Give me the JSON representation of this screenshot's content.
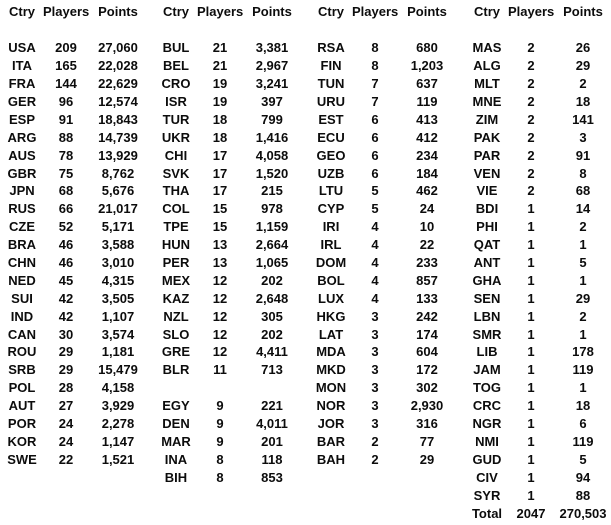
{
  "table": {
    "headers": [
      "Ctry",
      "Players",
      "Points"
    ],
    "total_label": "Total",
    "groups": [
      {
        "rows": [
          [
            "USA",
            "209",
            "27,060"
          ],
          [
            "ITA",
            "165",
            "22,028"
          ],
          [
            "FRA",
            "144",
            "22,629"
          ],
          [
            "GER",
            "96",
            "12,574"
          ],
          [
            "ESP",
            "91",
            "18,843"
          ],
          [
            "ARG",
            "88",
            "14,739"
          ],
          [
            "AUS",
            "78",
            "13,929"
          ],
          [
            "GBR",
            "75",
            "8,762"
          ],
          [
            "JPN",
            "68",
            "5,676"
          ],
          [
            "RUS",
            "66",
            "21,017"
          ],
          [
            "CZE",
            "52",
            "5,171"
          ],
          [
            "BRA",
            "46",
            "3,588"
          ],
          [
            "CHN",
            "46",
            "3,010"
          ],
          [
            "NED",
            "45",
            "4,315"
          ],
          [
            "SUI",
            "42",
            "3,505"
          ],
          [
            "IND",
            "42",
            "1,107"
          ],
          [
            "CAN",
            "30",
            "3,574"
          ],
          [
            "ROU",
            "29",
            "1,181"
          ],
          [
            "SRB",
            "29",
            "15,479"
          ],
          [
            "POL",
            "28",
            "4,158"
          ],
          [
            "AUT",
            "27",
            "3,929"
          ],
          [
            "POR",
            "24",
            "2,278"
          ],
          [
            "KOR",
            "24",
            "1,147"
          ],
          [
            "SWE",
            "22",
            "1,521"
          ],
          null,
          null,
          null
        ]
      },
      {
        "rows": [
          [
            "BUL",
            "21",
            "3,381"
          ],
          [
            "BEL",
            "21",
            "2,967"
          ],
          [
            "CRO",
            "19",
            "3,241"
          ],
          [
            "ISR",
            "19",
            "397"
          ],
          [
            "TUR",
            "18",
            "799"
          ],
          [
            "UKR",
            "18",
            "1,416"
          ],
          [
            "CHI",
            "17",
            "4,058"
          ],
          [
            "SVK",
            "17",
            "1,520"
          ],
          [
            "THA",
            "17",
            "215"
          ],
          [
            "COL",
            "15",
            "978"
          ],
          [
            "TPE",
            "15",
            "1,159"
          ],
          [
            "HUN",
            "13",
            "2,664"
          ],
          [
            "PER",
            "13",
            "1,065"
          ],
          [
            "MEX",
            "12",
            "202"
          ],
          [
            "KAZ",
            "12",
            "2,648"
          ],
          [
            "NZL",
            "12",
            "305"
          ],
          [
            "SLO",
            "12",
            "202"
          ],
          [
            "GRE",
            "12",
            "4,411"
          ],
          [
            "BLR",
            "11",
            "713"
          ],
          null,
          [
            "EGY",
            "9",
            "221"
          ],
          [
            "DEN",
            "9",
            "4,011"
          ],
          [
            "MAR",
            "9",
            "201"
          ],
          [
            "INA",
            "8",
            "118"
          ],
          [
            "BIH",
            "8",
            "853"
          ],
          null,
          null
        ]
      },
      {
        "rows": [
          [
            "RSA",
            "8",
            "680"
          ],
          [
            "FIN",
            "8",
            "1,203"
          ],
          [
            "TUN",
            "7",
            "637"
          ],
          [
            "URU",
            "7",
            "119"
          ],
          [
            "EST",
            "6",
            "413"
          ],
          [
            "ECU",
            "6",
            "412"
          ],
          [
            "GEO",
            "6",
            "234"
          ],
          [
            "UZB",
            "6",
            "184"
          ],
          [
            "LTU",
            "5",
            "462"
          ],
          [
            "CYP",
            "5",
            "24"
          ],
          [
            "IRI",
            "4",
            "10"
          ],
          [
            "IRL",
            "4",
            "22"
          ],
          [
            "DOM",
            "4",
            "233"
          ],
          [
            "BOL",
            "4",
            "857"
          ],
          [
            "LUX",
            "4",
            "133"
          ],
          [
            "HKG",
            "3",
            "242"
          ],
          [
            "LAT",
            "3",
            "174"
          ],
          [
            "MDA",
            "3",
            "604"
          ],
          [
            "MKD",
            "3",
            "172"
          ],
          [
            "MON",
            "3",
            "302"
          ],
          [
            "NOR",
            "3",
            "2,930"
          ],
          [
            "JOR",
            "3",
            "316"
          ],
          [
            "BAR",
            "2",
            "77"
          ],
          [
            "BAH",
            "2",
            "29"
          ],
          null,
          null,
          null
        ]
      },
      {
        "rows": [
          [
            "MAS",
            "2",
            "26"
          ],
          [
            "ALG",
            "2",
            "29"
          ],
          [
            "MLT",
            "2",
            "2"
          ],
          [
            "MNE",
            "2",
            "18"
          ],
          [
            "ZIM",
            "2",
            "141"
          ],
          [
            "PAK",
            "2",
            "3"
          ],
          [
            "PAR",
            "2",
            "91"
          ],
          [
            "VEN",
            "2",
            "8"
          ],
          [
            "VIE",
            "2",
            "68"
          ],
          [
            "BDI",
            "1",
            "14"
          ],
          [
            "PHI",
            "1",
            "2"
          ],
          [
            "QAT",
            "1",
            "1"
          ],
          [
            "ANT",
            "1",
            "5"
          ],
          [
            "GHA",
            "1",
            "1"
          ],
          [
            "SEN",
            "1",
            "29"
          ],
          [
            "LBN",
            "1",
            "2"
          ],
          [
            "SMR",
            "1",
            "1"
          ],
          [
            "LIB",
            "1",
            "178"
          ],
          [
            "JAM",
            "1",
            "119"
          ],
          [
            "TOG",
            "1",
            "1"
          ],
          [
            "CRC",
            "1",
            "18"
          ],
          [
            "NGR",
            "1",
            "6"
          ],
          [
            "NMI",
            "1",
            "119"
          ],
          [
            "GUD",
            "1",
            "5"
          ],
          [
            "CIV",
            "1",
            "94"
          ],
          [
            "SYR",
            "1",
            "88"
          ],
          [
            "Total",
            "2047",
            "270,503"
          ]
        ]
      }
    ]
  },
  "colors": {
    "text": "#0c0c0c",
    "background": "#ffffff"
  }
}
